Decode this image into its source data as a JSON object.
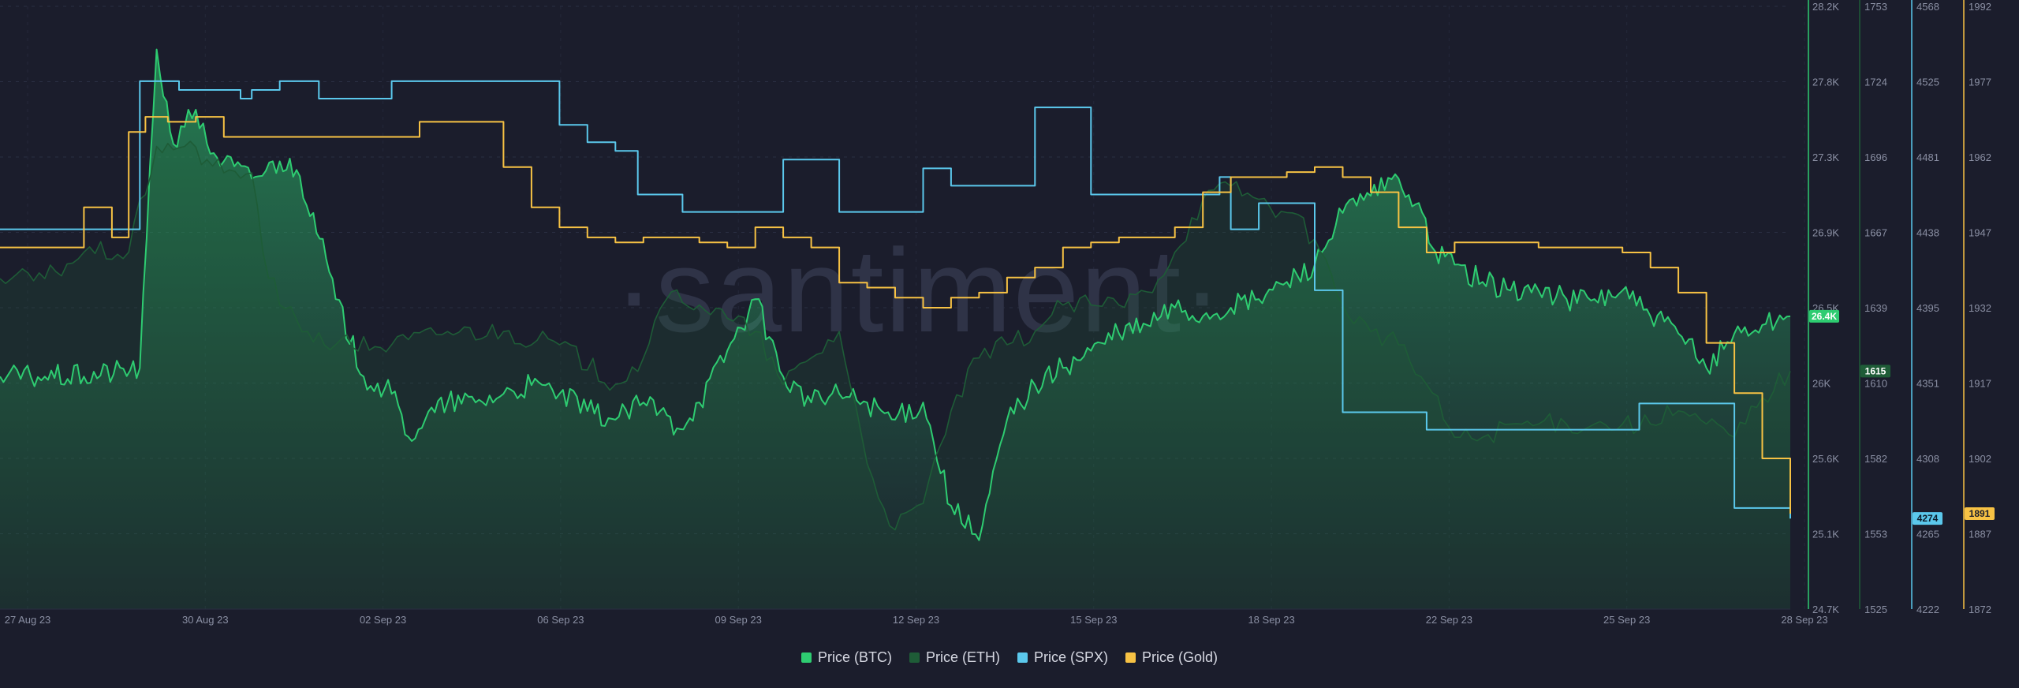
{
  "watermark": "·santiment·",
  "chart_data": {
    "type": "line",
    "x_range": [
      "2023-08-27",
      "2023-09-28"
    ],
    "x_tick_labels": [
      "27 Aug 23",
      "30 Aug 23",
      "02 Sep 23",
      "06 Sep 23",
      "09 Sep 23",
      "12 Sep 23",
      "15 Sep 23",
      "18 Sep 23",
      "22 Sep 23",
      "25 Sep 23",
      "28 Sep 23"
    ],
    "axes": [
      {
        "id": "btc",
        "ylim": [
          24700,
          28200
        ],
        "tick_labels": [
          "28.2K",
          "27.8K",
          "27.3K",
          "26.9K",
          "26.5K",
          "26K",
          "25.6K",
          "25.1K",
          "24.7K"
        ],
        "color": "#2ecc71"
      },
      {
        "id": "eth",
        "ylim": [
          1525,
          1753
        ],
        "tick_labels": [
          "1753",
          "1724",
          "1696",
          "1667",
          "1639",
          "1610",
          "1582",
          "1553",
          "1525"
        ],
        "color": "#1e5c37"
      },
      {
        "id": "spx",
        "ylim": [
          4222,
          4568
        ],
        "tick_labels": [
          "4568",
          "4525",
          "4481",
          "4438",
          "4395",
          "4351",
          "4308",
          "4265",
          "4222"
        ],
        "color": "#5bc8ec"
      },
      {
        "id": "gold",
        "ylim": [
          1872,
          1992
        ],
        "tick_labels": [
          "1992",
          "1977",
          "1962",
          "1947",
          "1932",
          "1917",
          "1902",
          "1887",
          "1872"
        ],
        "color": "#f7c244"
      }
    ],
    "series": [
      {
        "name": "Price (BTC)",
        "axis": "btc",
        "color": "#2ecc71",
        "last_label": "26.4K",
        "x": [
          0,
          0.8,
          1.5,
          2.5,
          2.8,
          3.1,
          3.3,
          3.5,
          3.7,
          4,
          4.5,
          5,
          5.3,
          5.6,
          6,
          6.5,
          7,
          7.3,
          7.6,
          8,
          8.5,
          9,
          9.5,
          10,
          10.5,
          11,
          11.5,
          11.8,
          12.1,
          12.5,
          13,
          13.5,
          14,
          14.5,
          15,
          15.5,
          16,
          16.5,
          17,
          17.5,
          18,
          18.5,
          19,
          19.5,
          20,
          20.5,
          21,
          21.5,
          22,
          22.5,
          23,
          23.5,
          24,
          24.5,
          25,
          25.3,
          25.6,
          26,
          26.5,
          27,
          27.5,
          28,
          28.5,
          29,
          29.5,
          30,
          30.5,
          31,
          31.5,
          32
        ],
        "y": [
          26050,
          26050,
          26050,
          26100,
          27950,
          27400,
          27500,
          27600,
          27400,
          27300,
          27200,
          27300,
          27250,
          27000,
          26500,
          26050,
          25950,
          25700,
          25800,
          25900,
          25900,
          25950,
          26000,
          25950,
          25850,
          25800,
          25900,
          25850,
          25750,
          25900,
          26200,
          26500,
          26050,
          25900,
          25950,
          25900,
          25800,
          25900,
          25300,
          25100,
          25800,
          26000,
          26100,
          26200,
          26300,
          26350,
          26450,
          26400,
          26450,
          26500,
          26600,
          26700,
          27000,
          27100,
          27200,
          27050,
          26800,
          26700,
          26600,
          26550,
          26550,
          26500,
          26500,
          26550,
          26400,
          26300,
          26100,
          26300,
          26350,
          26400
        ]
      },
      {
        "name": "Price (ETH)",
        "axis": "eth",
        "color": "#1e5c37",
        "last_label": "1615",
        "x": [
          0,
          0.8,
          1.5,
          2.3,
          2.8,
          3.3,
          3.7,
          4,
          4.5,
          4.7,
          5,
          5.5,
          6,
          7,
          8,
          9,
          10,
          11,
          11.5,
          12,
          12.5,
          13,
          13.5,
          14,
          14.5,
          15,
          15.5,
          16,
          16.5,
          17,
          17.5,
          18,
          18.5,
          19,
          19.5,
          20,
          20.5,
          21,
          21.5,
          22,
          22.5,
          23,
          23.5,
          24,
          24.5,
          25,
          25.5,
          26,
          26.5,
          27,
          27.5,
          28,
          28.5,
          29,
          29.5,
          30,
          30.5,
          31,
          31.5,
          32
        ],
        "y": [
          1650,
          1650,
          1660,
          1660,
          1700,
          1700,
          1695,
          1690,
          1690,
          1660,
          1640,
          1630,
          1625,
          1625,
          1630,
          1630,
          1625,
          1610,
          1620,
          1645,
          1640,
          1635,
          1630,
          1610,
          1620,
          1630,
          1580,
          1555,
          1565,
          1600,
          1620,
          1625,
          1630,
          1640,
          1640,
          1640,
          1645,
          1660,
          1680,
          1685,
          1680,
          1675,
          1665,
          1640,
          1630,
          1625,
          1610,
          1590,
          1590,
          1595,
          1595,
          1595,
          1595,
          1595,
          1595,
          1600,
          1595,
          1590,
          1605,
          1615
        ]
      },
      {
        "name": "Price (SPX)",
        "axis": "spx",
        "color": "#5bc8ec",
        "last_label": "4274",
        "x": [
          0,
          1.5,
          2.3,
          2.5,
          3.2,
          3.8,
          4.3,
          4.5,
          5,
          5.7,
          6,
          7,
          8.2,
          9,
          10,
          10.5,
          11,
          11.4,
          11.8,
          12.2,
          12.8,
          13,
          13.5,
          14,
          14.5,
          15,
          15.5,
          16,
          16.5,
          17,
          17.5,
          18,
          18.5,
          19,
          19.5,
          20,
          20.5,
          21,
          21.5,
          21.8,
          22,
          22.5,
          23,
          23.5,
          24,
          24.5,
          25,
          25.5,
          26,
          26.5,
          27,
          27.5,
          28,
          28.5,
          29,
          29.3,
          29.5,
          30,
          30.5,
          31,
          31.5,
          32
        ],
        "y": [
          4440,
          4440,
          4440,
          4525,
          4520,
          4520,
          4515,
          4520,
          4525,
          4515,
          4515,
          4525,
          4525,
          4525,
          4500,
          4490,
          4485,
          4460,
          4460,
          4450,
          4450,
          4450,
          4450,
          4480,
          4480,
          4450,
          4450,
          4450,
          4475,
          4465,
          4465,
          4465,
          4510,
          4510,
          4460,
          4460,
          4460,
          4460,
          4460,
          4470,
          4440,
          4455,
          4455,
          4405,
          4335,
          4335,
          4335,
          4325,
          4325,
          4325,
          4325,
          4325,
          4325,
          4325,
          4325,
          4340,
          4340,
          4340,
          4340,
          4280,
          4280,
          4274
        ]
      },
      {
        "name": "Price (Gold)",
        "axis": "gold",
        "color": "#f7c244",
        "last_label": "1891",
        "x": [
          0,
          1,
          1.5,
          2,
          2.3,
          2.6,
          3,
          3.5,
          4,
          4.5,
          5,
          5.5,
          6,
          6.5,
          7,
          7.5,
          8,
          8.5,
          9,
          9.5,
          10,
          10.5,
          11,
          11.5,
          12,
          12.5,
          13,
          13.5,
          14,
          14.5,
          15,
          15.5,
          16,
          16.5,
          17,
          17.5,
          18,
          18.5,
          19,
          19.5,
          20,
          20.5,
          21,
          21.5,
          22,
          22.5,
          23,
          23.5,
          24,
          24.5,
          25,
          25.5,
          26,
          26.5,
          27,
          27.5,
          28,
          28.5,
          29,
          29.5,
          30,
          30.5,
          31,
          31.5,
          32
        ],
        "y": [
          1944,
          1944,
          1952,
          1946,
          1967,
          1970,
          1969,
          1970,
          1966,
          1966,
          1966,
          1966,
          1966,
          1966,
          1966,
          1969,
          1969,
          1969,
          1960,
          1952,
          1948,
          1946,
          1945,
          1946,
          1946,
          1945,
          1944,
          1948,
          1946,
          1944,
          1937,
          1936,
          1934,
          1932,
          1934,
          1935,
          1938,
          1940,
          1944,
          1945,
          1946,
          1946,
          1948,
          1955,
          1958,
          1958,
          1959,
          1960,
          1958,
          1955,
          1948,
          1943,
          1945,
          1945,
          1945,
          1944,
          1944,
          1944,
          1943,
          1940,
          1935,
          1925,
          1915,
          1902,
          1891
        ]
      }
    ]
  },
  "legend": [
    {
      "label": "Price (BTC)",
      "color": "#2ecc71"
    },
    {
      "label": "Price (ETH)",
      "color": "#1e5c37"
    },
    {
      "label": "Price (SPX)",
      "color": "#5bc8ec"
    },
    {
      "label": "Price (Gold)",
      "color": "#f7c244"
    }
  ]
}
